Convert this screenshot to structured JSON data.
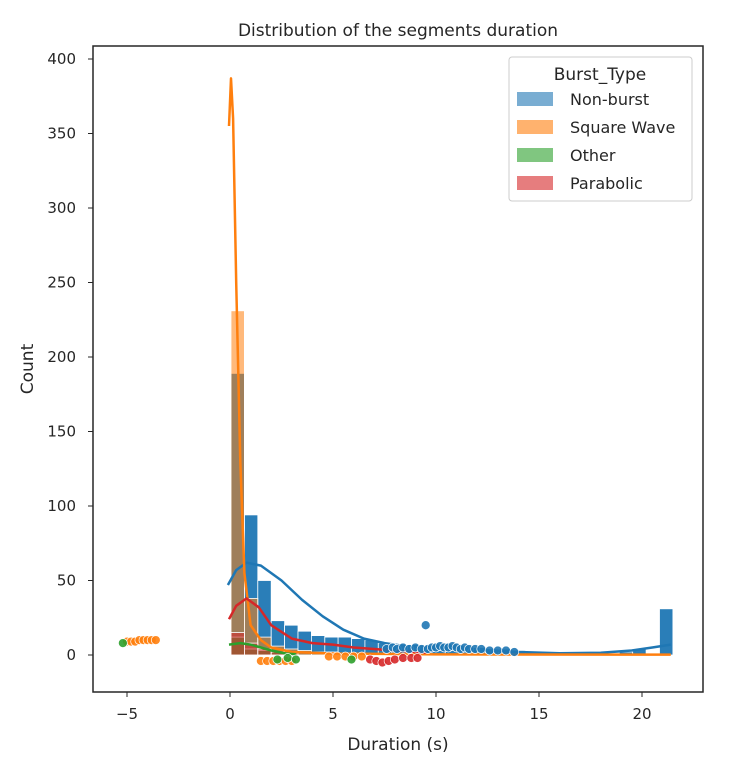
{
  "chart_data": {
    "type": "bar",
    "title": "Distribution of the segments duration",
    "xlabel": "Duration (s)",
    "ylabel": "Count",
    "xlim": [
      -6.5,
      22.5
    ],
    "ylim": [
      -25,
      410
    ],
    "xticks": [
      "−5",
      "0",
      "5",
      "10",
      "15",
      "20"
    ],
    "yticks": [
      "0",
      "50",
      "100",
      "150",
      "200",
      "250",
      "300",
      "350",
      "400"
    ],
    "grid": false,
    "legend_position": "top-right",
    "legend": {
      "title": "Burst_Type",
      "entries": [
        "Non-burst",
        "Square Wave",
        "Other",
        "Parabolic"
      ]
    },
    "colors": {
      "Non-burst": "#1f77b4",
      "Square Wave": "#ff7f0e",
      "Other": "#2ca02c",
      "Parabolic": "#d62728"
    },
    "bin_width": 0.65,
    "series": [
      {
        "name": "Non-burst",
        "type": "histogram",
        "bins": [
          {
            "x0": 0.05,
            "count": 189
          },
          {
            "x0": 0.7,
            "count": 94
          },
          {
            "x0": 1.35,
            "count": 50
          },
          {
            "x0": 2.0,
            "count": 23
          },
          {
            "x0": 2.65,
            "count": 20
          },
          {
            "x0": 3.3,
            "count": 16
          },
          {
            "x0": 3.95,
            "count": 13
          },
          {
            "x0": 4.6,
            "count": 12
          },
          {
            "x0": 5.25,
            "count": 12
          },
          {
            "x0": 5.9,
            "count": 11
          },
          {
            "x0": 6.55,
            "count": 10
          },
          {
            "x0": 7.2,
            "count": 8
          },
          {
            "x0": 7.85,
            "count": 7
          },
          {
            "x0": 8.5,
            "count": 7
          },
          {
            "x0": 9.15,
            "count": 6
          },
          {
            "x0": 9.8,
            "count": 6
          },
          {
            "x0": 10.45,
            "count": 6
          },
          {
            "x0": 11.1,
            "count": 6
          },
          {
            "x0": 11.75,
            "count": 5
          },
          {
            "x0": 12.4,
            "count": 4
          },
          {
            "x0": 13.05,
            "count": 4
          },
          {
            "x0": 13.7,
            "count": 3
          },
          {
            "x0": 14.35,
            "count": 2
          },
          {
            "x0": 15.0,
            "count": 2
          },
          {
            "x0": 15.65,
            "count": 2
          },
          {
            "x0": 16.3,
            "count": 1
          },
          {
            "x0": 16.95,
            "count": 1
          },
          {
            "x0": 17.6,
            "count": 1
          },
          {
            "x0": 18.25,
            "count": 1
          },
          {
            "x0": 18.9,
            "count": 2
          },
          {
            "x0": 19.55,
            "count": 4
          },
          {
            "x0": 20.85,
            "count": 31
          }
        ],
        "kde": [
          [
            -0.1,
            47
          ],
          [
            0.3,
            57
          ],
          [
            0.8,
            62
          ],
          [
            1.5,
            60
          ],
          [
            2.5,
            50
          ],
          [
            3.5,
            37
          ],
          [
            4.5,
            26
          ],
          [
            5.5,
            17
          ],
          [
            6.5,
            11
          ],
          [
            7.5,
            8
          ],
          [
            8.5,
            6
          ],
          [
            10,
            5
          ],
          [
            12,
            3.5
          ],
          [
            14,
            2
          ],
          [
            16,
            1.2
          ],
          [
            18,
            1.5
          ],
          [
            19.5,
            3
          ],
          [
            20.5,
            5
          ],
          [
            21.4,
            7
          ]
        ],
        "points": [
          [
            9.5,
            20
          ],
          [
            7.6,
            4
          ],
          [
            7.9,
            5
          ],
          [
            8.1,
            4
          ],
          [
            8.4,
            5
          ],
          [
            8.7,
            4
          ],
          [
            9.0,
            5
          ],
          [
            9.3,
            4
          ],
          [
            9.6,
            4
          ],
          [
            9.8,
            5
          ],
          [
            10.0,
            5
          ],
          [
            10.2,
            6
          ],
          [
            10.4,
            5
          ],
          [
            10.6,
            5
          ],
          [
            10.8,
            6
          ],
          [
            11.0,
            5
          ],
          [
            11.2,
            4
          ],
          [
            11.4,
            5
          ],
          [
            11.6,
            4
          ],
          [
            11.9,
            4
          ],
          [
            12.2,
            4
          ],
          [
            12.6,
            3
          ],
          [
            13.0,
            3
          ],
          [
            13.4,
            3
          ],
          [
            13.8,
            2
          ]
        ]
      },
      {
        "name": "Square Wave",
        "type": "histogram",
        "bins": [
          {
            "x0": 0.05,
            "count": 231
          },
          {
            "x0": 0.7,
            "count": 38
          },
          {
            "x0": 1.35,
            "count": 12
          },
          {
            "x0": 2.0,
            "count": 6
          },
          {
            "x0": 2.65,
            "count": 4
          },
          {
            "x0": 3.3,
            "count": 3
          },
          {
            "x0": 3.95,
            "count": 2
          },
          {
            "x0": 4.6,
            "count": 2
          },
          {
            "x0": 5.25,
            "count": 1
          }
        ],
        "kde": [
          [
            -0.05,
            355
          ],
          [
            0.05,
            387
          ],
          [
            0.15,
            360
          ],
          [
            0.3,
            250
          ],
          [
            0.5,
            130
          ],
          [
            0.7,
            55
          ],
          [
            1.0,
            20
          ],
          [
            1.5,
            10
          ],
          [
            2.0,
            5
          ],
          [
            3.0,
            2
          ],
          [
            5.0,
            1
          ],
          [
            10.0,
            0.4
          ],
          [
            21.4,
            0.3
          ]
        ],
        "points": [
          [
            -5.0,
            9
          ],
          [
            -4.8,
            9
          ],
          [
            -4.6,
            9
          ],
          [
            -4.4,
            10
          ],
          [
            -4.2,
            10
          ],
          [
            -4.0,
            10
          ],
          [
            -3.8,
            10
          ],
          [
            -3.6,
            10
          ],
          [
            1.5,
            -4
          ],
          [
            1.8,
            -4
          ],
          [
            2.1,
            -4
          ],
          [
            2.4,
            -4
          ],
          [
            2.7,
            -4
          ],
          [
            3.0,
            -4
          ],
          [
            4.8,
            -1
          ],
          [
            5.2,
            -1
          ],
          [
            5.6,
            -1
          ],
          [
            6.0,
            -1
          ],
          [
            6.4,
            -1
          ]
        ]
      },
      {
        "name": "Other",
        "type": "histogram",
        "bins": [
          {
            "x0": 0.05,
            "count": 12
          },
          {
            "x0": 0.7,
            "count": 4
          },
          {
            "x0": 1.35,
            "count": 3
          },
          {
            "x0": 2.0,
            "count": 2
          }
        ],
        "kde": [
          [
            -0.05,
            7
          ],
          [
            0.5,
            8
          ],
          [
            1.0,
            7
          ],
          [
            1.5,
            5
          ],
          [
            2.0,
            3
          ],
          [
            2.7,
            1
          ],
          [
            3.2,
            0.5
          ]
        ],
        "points": [
          [
            -5.2,
            8
          ],
          [
            2.3,
            -3
          ],
          [
            2.8,
            -2
          ],
          [
            3.2,
            -3
          ],
          [
            5.9,
            -3
          ]
        ]
      },
      {
        "name": "Parabolic",
        "type": "histogram",
        "bins": [
          {
            "x0": 0.05,
            "count": 15
          },
          {
            "x0": 0.7,
            "count": 8
          },
          {
            "x0": 1.35,
            "count": 4
          },
          {
            "x0": 2.0,
            "count": 2
          },
          {
            "x0": 6.55,
            "count": 1
          }
        ],
        "kde": [
          [
            -0.05,
            24
          ],
          [
            0.3,
            33
          ],
          [
            0.8,
            38
          ],
          [
            1.4,
            32
          ],
          [
            2.0,
            20
          ],
          [
            3.0,
            11
          ],
          [
            4.0,
            8
          ],
          [
            5.0,
            7
          ],
          [
            6.0,
            5
          ],
          [
            7.0,
            4
          ],
          [
            8.0,
            3
          ],
          [
            9.0,
            2
          ],
          [
            9.5,
            1.5
          ]
        ],
        "points": [
          [
            6.8,
            -3
          ],
          [
            7.1,
            -4
          ],
          [
            7.4,
            -5
          ],
          [
            7.7,
            -4
          ],
          [
            8.0,
            -3
          ],
          [
            8.4,
            -2
          ],
          [
            8.8,
            -2
          ],
          [
            9.1,
            -2
          ]
        ]
      }
    ]
  }
}
